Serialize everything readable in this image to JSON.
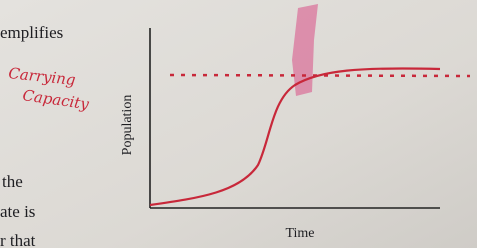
{
  "body_text": {
    "lines": [
      "emplifies",
      "the",
      "ate is",
      "r that"
    ]
  },
  "annotation": {
    "lines": [
      "Carrying",
      "Capacity"
    ]
  },
  "figure": {
    "y_axis_label": "Population",
    "x_axis_label": "Time"
  }
}
